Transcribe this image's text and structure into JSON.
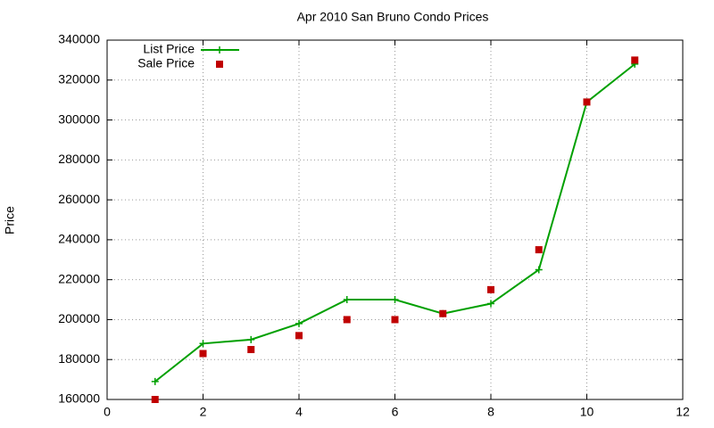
{
  "chart_data": {
    "type": "line",
    "title": "Apr 2010 San Bruno Condo Prices",
    "y_label": "Price",
    "x": [
      1,
      2,
      3,
      4,
      5,
      6,
      7,
      8,
      9,
      10,
      11
    ],
    "series": [
      {
        "name": "List Price",
        "color": "#00a000",
        "mode": "linespoints",
        "values": [
          169000,
          188000,
          190000,
          198000,
          210000,
          210000,
          203000,
          208000,
          225000,
          309000,
          328000
        ]
      },
      {
        "name": "Sale Price",
        "color": "#c00000",
        "mode": "points",
        "values": [
          160000,
          183000,
          185000,
          192000,
          200000,
          200000,
          203000,
          215000,
          235000,
          309000,
          330000
        ]
      }
    ],
    "xlim": [
      0,
      12
    ],
    "xticks": [
      0,
      2,
      4,
      6,
      8,
      10,
      12
    ],
    "ylim": [
      160000,
      340000
    ],
    "yticks": [
      160000,
      180000,
      200000,
      220000,
      240000,
      260000,
      280000,
      300000,
      320000,
      340000
    ],
    "grid": true,
    "legend": "top-left"
  }
}
